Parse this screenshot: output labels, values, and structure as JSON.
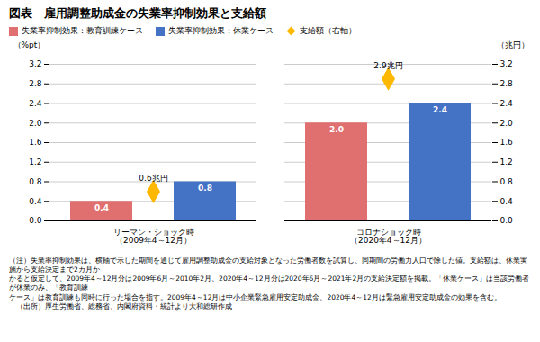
{
  "chart_data": {
    "type": "bar",
    "title": "図表　雇用調整助成金の失業率抑制効果と支給額",
    "categories": [
      "リーマン・ショック時\n（2009年4～12月）",
      "コロナショック時\n（2020年4～12月）"
    ],
    "series": [
      {
        "name": "失業率抑制効果：教育訓練ケース",
        "color": "#E07070",
        "values": [
          0.4,
          2.0
        ],
        "value_labels": [
          "0.4",
          "2.0"
        ]
      },
      {
        "name": "失業率抑制効果：休業ケース",
        "color": "#4472C4",
        "values": [
          0.8,
          2.4
        ]
      },
      {
        "name": "支給額（右軸）",
        "color": "#FFB800",
        "values": [
          0.6,
          2.9
        ],
        "value_labels": [
          "0.6兆円",
          "2.9兆円"
        ],
        "axis": "y2",
        "type": "scatter",
        "marker": "diamond"
      }
    ],
    "ylabel": "（%pt）",
    "y2label": "（兆円）",
    "ylim": [
      0.0,
      3.2
    ],
    "yticks": [
      {
        "value": 0,
        "label": "0.0"
      },
      0.4,
      0.8,
      1.2,
      1.6,
      {
        "value": 2,
        "label": "2.0"
      },
      2.4,
      2.8,
      3.2
    ],
    "y2lim": [
      0.0,
      3.2
    ],
    "y2ticks": [
      {
        "value": 0,
        "label": "0.0"
      },
      0.4,
      0.8,
      1.2,
      1.6,
      {
        "value": 2,
        "label": "2.0"
      },
      2.4,
      2.8,
      3.2
    ],
    "grid": true,
    "legend": "top-left",
    "data_labels": true,
    "notes": [
      "（注）失業率抑制効果は、横軸で示した期間を通じて雇用調整助成金の支給対象となった労働者数を試算し、同期間の労働力人口で除した値。支給額は、休業実施から支給決定まで2カ月か",
      "かると仮定して、2009年4～12月分は2009年6月～2010年2月、2020年4～12月分は2020年6月～2021年2月の支給決定額を掲載。「休業ケース」は当該労働者が休業のみ、「教育訓練",
      "ケース」は教育訓練も同時に行った場合を指す。2009年4～12月は中小企業緊急雇用安定助成金、2020年4～12月は緊急雇用安定助成金の効果を含む。",
      "　（出所）厚生労働省、総務省、内閣府資料・統計より大和総研作成"
    ]
  }
}
